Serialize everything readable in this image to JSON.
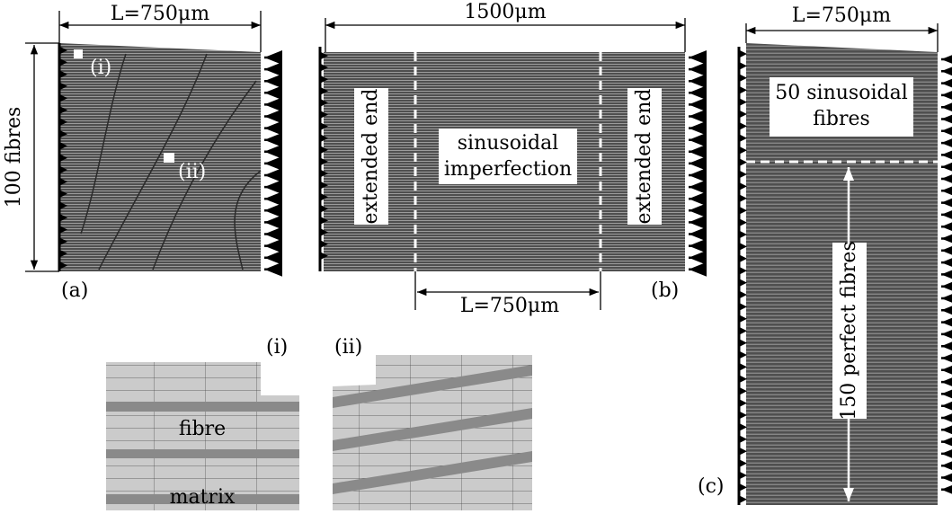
{
  "panel_a": {
    "dimension": "L=750μm",
    "fibre_count": "100 fibres",
    "inset_markers": [
      "(i)",
      "(ii)"
    ],
    "label": "(a)"
  },
  "panel_b": {
    "dimension_total": "1500μm",
    "end_labels": [
      "extended end",
      "extended end"
    ],
    "center_label": [
      "sinusoidal",
      "imperfection"
    ],
    "dimension_center": "L=750μm",
    "label": "(b)"
  },
  "panel_c": {
    "dimension": "L=750μm",
    "top_label": [
      "50 sinusoidal",
      "fibres"
    ],
    "bottom_label": "150 perfect fibres",
    "label": "(c)"
  },
  "insets": [
    {
      "label": "(i)",
      "texts": [
        "fibre",
        "matrix"
      ]
    },
    {
      "label": "(ii)"
    }
  ]
}
